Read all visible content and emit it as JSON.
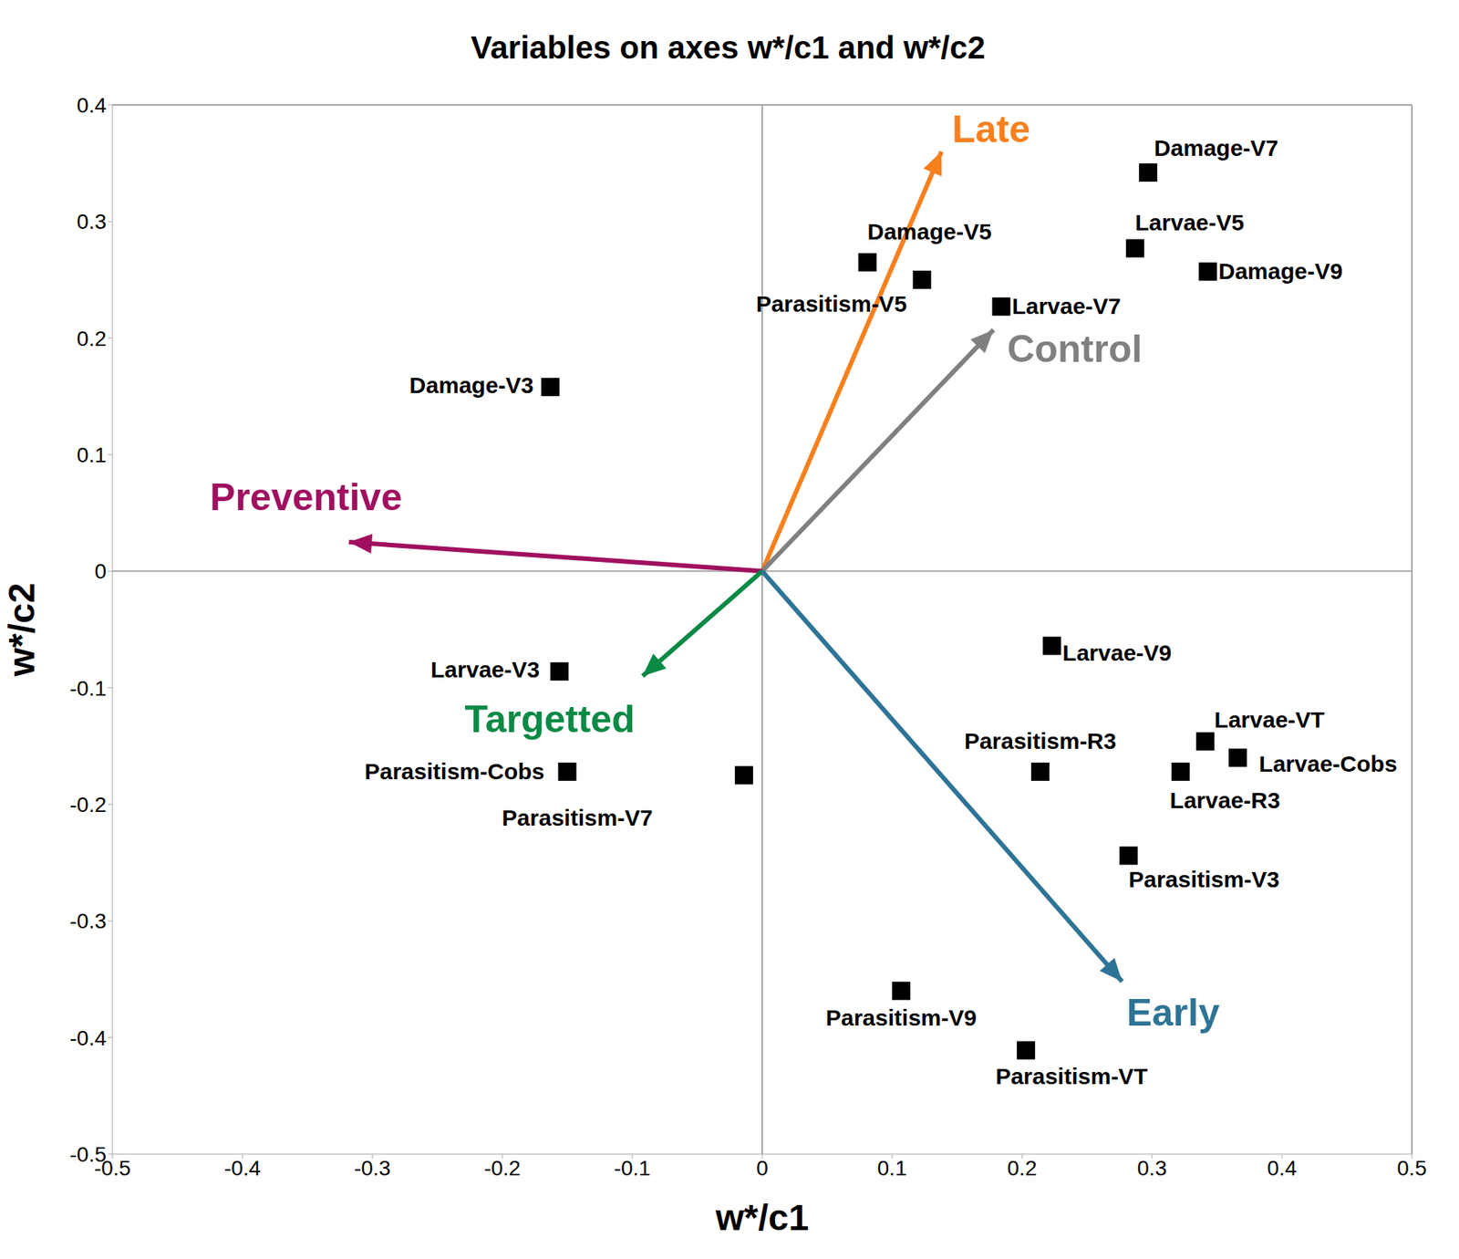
{
  "chart_data": {
    "type": "scatter",
    "title": "Variables on axes w*/c1 and w*/c2",
    "x_label": "w*/c1",
    "y_label": "w*/c2",
    "xlim": [
      -0.5,
      0.5
    ],
    "ylim": [
      -0.5,
      0.4
    ],
    "xticks": [
      -0.5,
      -0.4,
      -0.3,
      -0.2,
      -0.1,
      0,
      0.1,
      0.2,
      0.3,
      0.4,
      0.5
    ],
    "yticks": [
      -0.5,
      -0.4,
      -0.3,
      -0.2,
      -0.1,
      0,
      0.1,
      0.2,
      0.3,
      0.4
    ],
    "grid": false,
    "color": "#000000",
    "marker": "square",
    "points": [
      {
        "label": "Damage-V7",
        "x": 0.297,
        "y": 0.342
      },
      {
        "label": "Larvae-V5",
        "x": 0.287,
        "y": 0.277
      },
      {
        "label": "Damage-V9",
        "x": 0.343,
        "y": 0.257
      },
      {
        "label": "Damage-V5",
        "x": 0.081,
        "y": 0.265
      },
      {
        "label": "Parasitism-V5",
        "x": 0.123,
        "y": 0.25
      },
      {
        "label": "Larvae-V7",
        "x": 0.184,
        "y": 0.227
      },
      {
        "label": "Damage-V3",
        "x": -0.163,
        "y": 0.158
      },
      {
        "label": "Larvae-V9",
        "x": 0.223,
        "y": -0.064
      },
      {
        "label": "Larvae-VT",
        "x": 0.341,
        "y": -0.146
      },
      {
        "label": "Larvae-Cobs",
        "x": 0.366,
        "y": -0.16
      },
      {
        "label": "Larvae-R3",
        "x": 0.322,
        "y": -0.172
      },
      {
        "label": "Parasitism-R3",
        "x": 0.214,
        "y": -0.172
      },
      {
        "label": "Parasitism-V3",
        "x": 0.282,
        "y": -0.244
      },
      {
        "label": "Parasitism-V9",
        "x": 0.107,
        "y": -0.36
      },
      {
        "label": "Parasitism-VT",
        "x": 0.203,
        "y": -0.411
      },
      {
        "label": "Larvae-V3",
        "x": -0.156,
        "y": -0.086
      },
      {
        "label": "Parasitism-Cobs",
        "x": -0.15,
        "y": -0.172
      },
      {
        "label": "Parasitism-V7",
        "x": -0.014,
        "y": -0.175
      }
    ],
    "vectors": [
      {
        "label": "Late",
        "x": 0.138,
        "y": 0.36,
        "color": "#f7801e"
      },
      {
        "label": "Control",
        "x": 0.178,
        "y": 0.207,
        "color": "#808080"
      },
      {
        "label": "Preventive",
        "x": -0.318,
        "y": 0.025,
        "color": "#a0105f"
      },
      {
        "label": "Targetted",
        "x": -0.092,
        "y": -0.09,
        "color": "#0b8a45"
      },
      {
        "label": "Early",
        "x": 0.277,
        "y": -0.352,
        "color": "#2e7496"
      }
    ]
  }
}
